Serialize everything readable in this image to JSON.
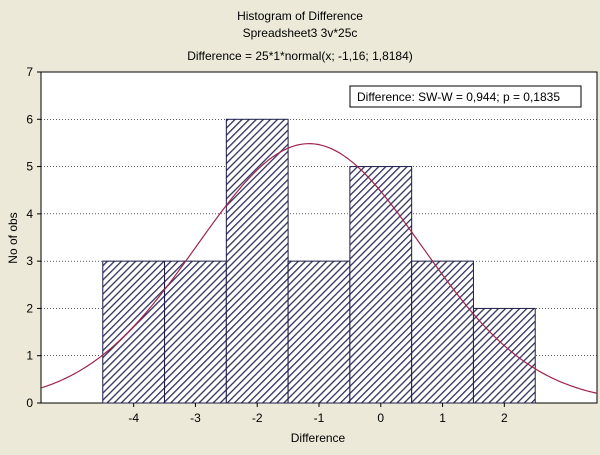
{
  "chart_data": {
    "type": "bar",
    "title": "Histogram of Difference",
    "subtitle": "Spreadsheet3 3v*25c",
    "subtitle2": "Difference = 25*1*normal(x; -1,16; 1,8184)",
    "xlabel": "Difference",
    "ylabel": "No of obs",
    "categories": [
      "-4",
      "-3",
      "-2",
      "-1",
      "0",
      "1",
      "2"
    ],
    "bins": [
      {
        "from": -4.5,
        "to": -3.5,
        "count": 3
      },
      {
        "from": -3.5,
        "to": -2.5,
        "count": 3
      },
      {
        "from": -2.5,
        "to": -1.5,
        "count": 6
      },
      {
        "from": -1.5,
        "to": -0.5,
        "count": 3
      },
      {
        "from": -0.5,
        "to": 0.5,
        "count": 5
      },
      {
        "from": 0.5,
        "to": 1.5,
        "count": 3
      },
      {
        "from": 1.5,
        "to": 2.5,
        "count": 2
      }
    ],
    "xlim": [
      -5.5,
      3.5
    ],
    "ylim": [
      0,
      7
    ],
    "yticks": [
      0,
      1,
      2,
      3,
      4,
      5,
      6,
      7
    ],
    "grid": true,
    "normal_fit": {
      "n": 25,
      "bin_width": 1,
      "mean": -1.16,
      "sd": 1.8184,
      "color": "#a0244e"
    },
    "legend": {
      "text": "Difference:  SW-W = 0,944; p = 0,1835",
      "placement": "top-right"
    },
    "colors": {
      "bar_fill": "#ffffff",
      "hatch": "#30305a",
      "bar_edge": "#1c1c4a",
      "background": "#ece9d8",
      "plot_bg": "#ffffff"
    }
  }
}
